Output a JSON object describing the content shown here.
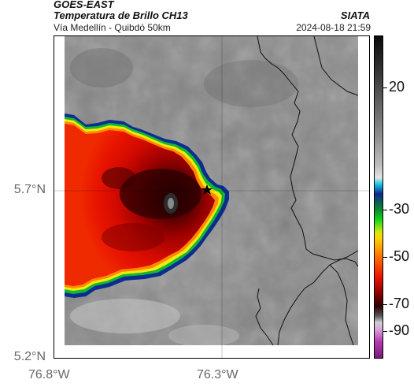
{
  "header": {
    "satellite": "GOES-EAST",
    "product": "Temperatura de Brillo CH13",
    "route": "Vía Medellín - Quibdó 50km",
    "source": "SIATA",
    "datetime": "2024-08-18 21:59"
  },
  "axes": {
    "y_ticks": [
      "5.7°N",
      "5.2°N"
    ],
    "x_ticks": [
      "76.8°W",
      "76.3°W"
    ]
  },
  "colorbar": {
    "ticks": [
      "20",
      "-30",
      "-50",
      "-70",
      "-90"
    ],
    "colors": {
      "cold": "#e81400",
      "core": "#2a0000",
      "warm_gray": "#8a8a8a"
    }
  },
  "map": {
    "marker_icon": "star-icon"
  }
}
